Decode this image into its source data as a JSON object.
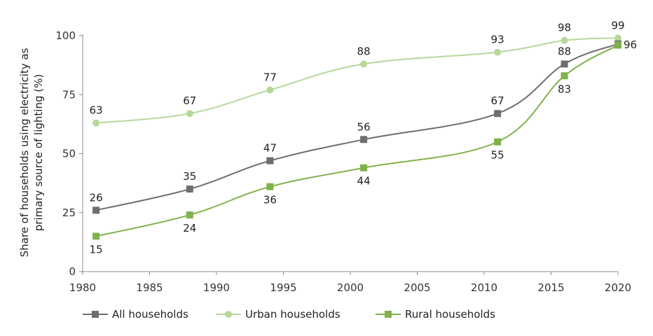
{
  "chart_data": {
    "type": "line",
    "title": "",
    "xlabel": "",
    "ylabel_lines": [
      "Share of households using electricity as",
      "primary source of lighting (%)"
    ],
    "xlim": [
      1980,
      2020
    ],
    "ylim": [
      0,
      100
    ],
    "xticks": [
      1980,
      1985,
      1990,
      1995,
      2000,
      2005,
      2010,
      2015,
      2020
    ],
    "yticks": [
      0,
      25,
      50,
      75,
      100
    ],
    "grid": false,
    "legend_position": "bottom",
    "series": [
      {
        "name": "All households",
        "color": "#6d6e71",
        "marker": "square",
        "points": [
          {
            "x": 1981,
            "y": 26,
            "label": "26",
            "pos": "above"
          },
          {
            "x": 1988,
            "y": 35,
            "label": "35",
            "pos": "above"
          },
          {
            "x": 1994,
            "y": 47,
            "label": "47",
            "pos": "above"
          },
          {
            "x": 2001,
            "y": 56,
            "label": "56",
            "pos": "above"
          },
          {
            "x": 2011,
            "y": 67,
            "label": "67",
            "pos": "above"
          },
          {
            "x": 2016,
            "y": 88,
            "label": "88",
            "pos": "above"
          },
          {
            "x": 2020,
            "y": 96.5,
            "label": "96",
            "pos": "right"
          }
        ]
      },
      {
        "name": "Urban households",
        "color": "#b7d89b",
        "marker": "circle",
        "points": [
          {
            "x": 1981,
            "y": 63,
            "label": "63",
            "pos": "above"
          },
          {
            "x": 1988,
            "y": 67,
            "label": "67",
            "pos": "above"
          },
          {
            "x": 1994,
            "y": 77,
            "label": "77",
            "pos": "above"
          },
          {
            "x": 2001,
            "y": 88,
            "label": "88",
            "pos": "above"
          },
          {
            "x": 2011,
            "y": 93,
            "label": "93",
            "pos": "above"
          },
          {
            "x": 2016,
            "y": 98,
            "label": "98",
            "pos": "above"
          },
          {
            "x": 2020,
            "y": 99,
            "label": "99",
            "pos": "above"
          }
        ]
      },
      {
        "name": "Rural households",
        "color": "#7fb24a",
        "marker": "square",
        "points": [
          {
            "x": 1981,
            "y": 15,
            "label": "15",
            "pos": "below"
          },
          {
            "x": 1988,
            "y": 24,
            "label": "24",
            "pos": "below"
          },
          {
            "x": 1994,
            "y": 36,
            "label": "36",
            "pos": "below"
          },
          {
            "x": 2001,
            "y": 44,
            "label": "44",
            "pos": "below"
          },
          {
            "x": 2011,
            "y": 55,
            "label": "55",
            "pos": "below"
          },
          {
            "x": 2016,
            "y": 83,
            "label": "83",
            "pos": "below"
          },
          {
            "x": 2020,
            "y": 96,
            "label": "",
            "pos": "none"
          }
        ]
      }
    ]
  }
}
